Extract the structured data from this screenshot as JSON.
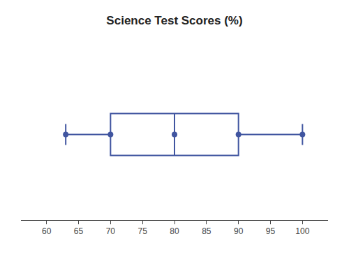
{
  "chart_data": {
    "type": "box",
    "orientation": "horizontal",
    "title": "Science Test Scores (%)",
    "min": 63,
    "q1": 70,
    "median": 80,
    "q3": 90,
    "max": 100,
    "color": "#4055a0",
    "marker": "circle",
    "xlim": [
      56,
      104
    ],
    "xticks": [
      60,
      65,
      70,
      75,
      80,
      85,
      90,
      95,
      100
    ],
    "grid": false,
    "tick_labels": "x"
  }
}
